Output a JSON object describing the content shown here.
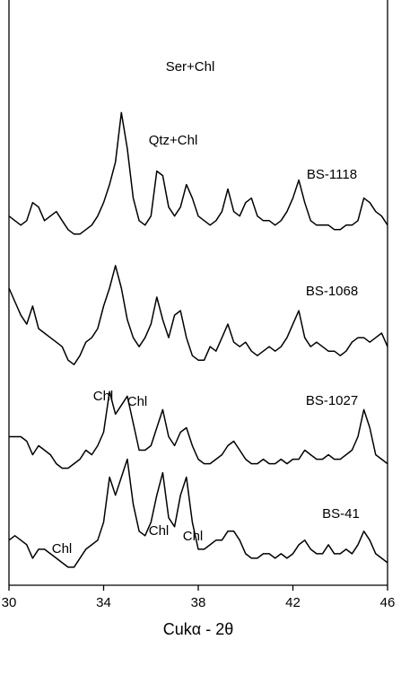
{
  "chart_data": {
    "type": "line",
    "x_label": "Cukα - 2θ",
    "x": [
      30,
      30.25,
      30.5,
      30.75,
      31,
      31.25,
      31.5,
      31.75,
      32,
      32.25,
      32.5,
      32.75,
      33,
      33.25,
      33.5,
      33.75,
      34,
      34.25,
      34.5,
      34.75,
      35,
      35.25,
      35.5,
      35.75,
      36,
      36.25,
      36.5,
      36.75,
      37,
      37.25,
      37.5,
      37.75,
      38,
      38.25,
      38.5,
      38.75,
      39,
      39.25,
      39.5,
      39.75,
      40,
      40.25,
      40.5,
      40.75,
      41,
      41.25,
      41.5,
      41.75,
      42,
      42.25,
      42.5,
      42.75,
      43,
      43.25,
      43.5,
      43.75,
      44,
      44.25,
      44.5,
      44.75,
      45,
      45.25,
      45.5,
      45.75,
      46
    ],
    "xlim": [
      30,
      46
    ],
    "xticks": [
      30,
      34,
      38,
      42,
      46
    ],
    "ylim": [
      0,
      130
    ],
    "series": [
      {
        "name": "BS-1118",
        "color": "#000000",
        "values": [
          82,
          81,
          80,
          81,
          85,
          84,
          81,
          82,
          83,
          81,
          79,
          78,
          78,
          79,
          80,
          82,
          85,
          89,
          94,
          105,
          97,
          86,
          81,
          80,
          82,
          92,
          91,
          84,
          82,
          84,
          89,
          86,
          82,
          81,
          80,
          81,
          83,
          88,
          83,
          82,
          85,
          86,
          82,
          81,
          81,
          80,
          81,
          83,
          86,
          90,
          85,
          81,
          80,
          80,
          80,
          79,
          79,
          80,
          80,
          81,
          86,
          85,
          83,
          82,
          80
        ]
      },
      {
        "name": "BS-1068",
        "color": "#000000",
        "values": [
          66,
          63,
          60,
          58,
          62,
          57,
          56,
          55,
          54,
          53,
          50,
          49,
          51,
          54,
          55,
          57,
          62,
          66,
          71,
          66,
          59,
          55,
          53,
          55,
          58,
          64,
          59,
          55,
          60,
          61,
          55,
          51,
          50,
          50,
          53,
          52,
          55,
          58,
          54,
          53,
          54,
          52,
          51,
          52,
          53,
          52,
          53,
          55,
          58,
          61,
          55,
          53,
          54,
          53,
          52,
          52,
          51,
          52,
          54,
          55,
          55,
          54,
          55,
          56,
          53
        ]
      },
      {
        "name": "BS-1027",
        "color": "#000000",
        "values": [
          33,
          33,
          33,
          32,
          29,
          31,
          30,
          29,
          27,
          26,
          26,
          27,
          28,
          30,
          29,
          31,
          34,
          43,
          38,
          40,
          42,
          36,
          30,
          30,
          31,
          35,
          39,
          33,
          31,
          34,
          35,
          31,
          28,
          27,
          27,
          28,
          29,
          31,
          32,
          30,
          28,
          27,
          27,
          28,
          27,
          27,
          28,
          27,
          28,
          28,
          30,
          29,
          28,
          28,
          29,
          28,
          28,
          29,
          30,
          33,
          39,
          35,
          29,
          28,
          27
        ]
      },
      {
        "name": "BS-41",
        "color": "#000000",
        "values": [
          10,
          11,
          10,
          9,
          6,
          8,
          8,
          7,
          6,
          5,
          4,
          4,
          6,
          8,
          9,
          10,
          14,
          24,
          20,
          24,
          28,
          18,
          12,
          11,
          14,
          20,
          25,
          15,
          13,
          20,
          24,
          14,
          8,
          8,
          9,
          10,
          10,
          12,
          12,
          10,
          7,
          6,
          6,
          7,
          7,
          6,
          7,
          6,
          7,
          9,
          10,
          8,
          7,
          7,
          9,
          7,
          7,
          8,
          7,
          9,
          12,
          10,
          7,
          6,
          5
        ]
      }
    ],
    "annotations": [
      "Ser+Chl",
      "Qtz+Chl",
      "Chl",
      "Chl",
      "Chl",
      "Chl",
      "Chl"
    ]
  }
}
